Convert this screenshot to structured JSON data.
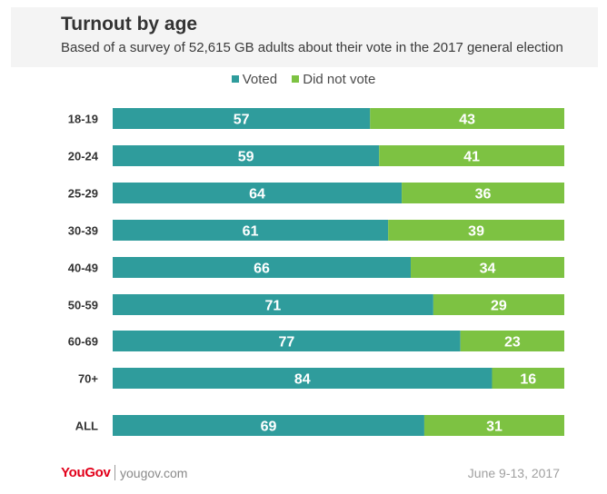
{
  "chart_data": {
    "type": "bar",
    "stacked": true,
    "orientation": "horizontal",
    "title": "Turnout by age",
    "subtitle": "Based of a survey of 52,615 GB adults about their vote in the 2017 general election",
    "categories": [
      "18-19",
      "20-24",
      "25-29",
      "30-39",
      "40-49",
      "50-59",
      "60-69",
      "70+",
      "ALL"
    ],
    "series": [
      {
        "name": "Voted",
        "color": "#2f9c9c",
        "values": [
          57,
          59,
          64,
          61,
          66,
          71,
          77,
          84,
          69
        ]
      },
      {
        "name": "Did not vote",
        "color": "#7dc242",
        "values": [
          43,
          41,
          36,
          39,
          34,
          29,
          23,
          16,
          31
        ]
      }
    ],
    "xlim": [
      0,
      100
    ],
    "grid": false,
    "legend": "top-center",
    "data_labels": true
  },
  "footer": {
    "brand": "YouGov",
    "site": "yougov.com",
    "date": "June 9-13, 2017"
  }
}
